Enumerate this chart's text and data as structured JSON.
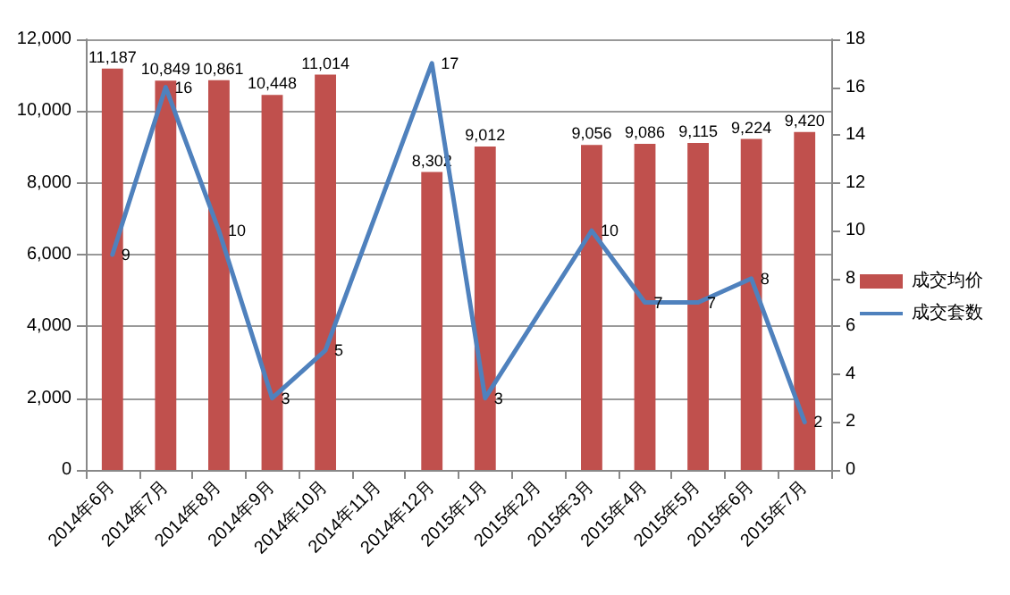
{
  "chart_data": {
    "type": "bar",
    "categories": [
      "2014年6月",
      "2014年7月",
      "2014年8月",
      "2014年9月",
      "2014年10月",
      "2014年11月",
      "2014年12月",
      "2015年1月",
      "2015年2月",
      "2015年3月",
      "2015年4月",
      "2015年5月",
      "2015年6月",
      "2015年7月"
    ],
    "series": [
      {
        "name": "成交均价",
        "color": "#c0504d",
        "values": [
          11187,
          10849,
          10861,
          10448,
          11014,
          null,
          8302,
          9012,
          null,
          9056,
          9086,
          9115,
          9224,
          9420
        ],
        "value_labels": [
          "11,187",
          "10,849",
          "10,861",
          "10,448",
          "11,014",
          null,
          "8,302",
          "9,012",
          null,
          "9,056",
          "9,086",
          "9,115",
          "9,224",
          "9,420"
        ]
      },
      {
        "name": "成交套数",
        "type": "line",
        "axis": "y2",
        "color": "#4f81bd",
        "values": [
          9,
          16,
          10,
          3,
          5,
          null,
          17,
          3,
          null,
          10,
          7,
          7,
          8,
          2
        ],
        "value_labels": [
          "9",
          "16",
          "10",
          "3",
          "5",
          null,
          "17",
          "3",
          null,
          "10",
          "7",
          "7",
          "8",
          "2"
        ]
      }
    ],
    "ylim": [
      0,
      12000
    ],
    "yticks": [
      {
        "value": 0,
        "label": "0"
      },
      {
        "value": 2000,
        "label": "2,000"
      },
      {
        "value": 4000,
        "label": "4,000"
      },
      {
        "value": 6000,
        "label": "6,000"
      },
      {
        "value": 8000,
        "label": "8,000"
      },
      {
        "value": 10000,
        "label": "10,000"
      },
      {
        "value": 12000,
        "label": "12,000"
      }
    ],
    "y2lim": [
      0,
      18
    ],
    "y2ticks": [
      0,
      2,
      4,
      6,
      8,
      10,
      12,
      14,
      16,
      18
    ],
    "grid": "y",
    "legend": "right",
    "marker": "none",
    "line_style": "solid"
  }
}
